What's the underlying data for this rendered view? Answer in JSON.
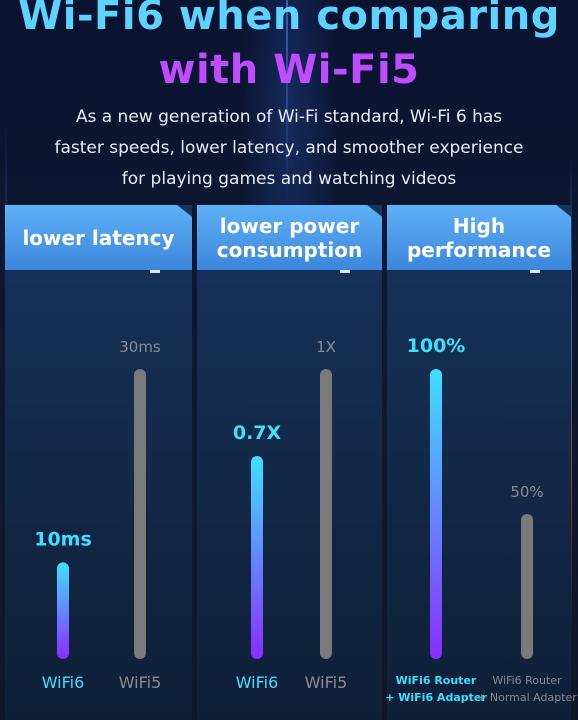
{
  "title": {
    "line1": "Wi-Fi6 when comparing",
    "line2": "with Wi-Fi5"
  },
  "subtitle": {
    "line1": "As a new generation of Wi-Fi standard, Wi-Fi 6 has",
    "line2": "faster speeds, lower latency, and smoother experience",
    "line3": "for playing games and watching videos"
  },
  "colors": {
    "title_top": "#5fd3ff",
    "title_bottom": "#c04cff",
    "header_bar": "#4a9de8",
    "wifi6_bar_top": "#3fe0ff",
    "wifi6_bar_bottom": "#8a2cff",
    "wifi6_label": "#3fe0ff",
    "wifi5_bar": "#7a7a7a",
    "wifi5_label": "#8c8c8c"
  },
  "chart_data": [
    {
      "type": "bar",
      "title": "lower latency",
      "categories": [
        "WiFi6",
        "WiFi5"
      ],
      "values": [
        10,
        30
      ],
      "data_labels": [
        "10ms",
        "30ms"
      ],
      "ylim": [
        0,
        30
      ]
    },
    {
      "type": "bar",
      "title": "lower power consumption",
      "categories": [
        "WiFi6",
        "WiFi5"
      ],
      "values": [
        0.7,
        1
      ],
      "data_labels": [
        "0.7X",
        "1X"
      ],
      "ylim": [
        0,
        1
      ]
    },
    {
      "type": "bar",
      "title": "High performance",
      "categories": [
        "WiFi6 Router\n+ WiFi6 Adapter",
        "WiFi6 Router\n+ Normal Adapter"
      ],
      "values": [
        100,
        50
      ],
      "data_labels": [
        "100%",
        "50%"
      ],
      "ylim": [
        0,
        100
      ]
    }
  ]
}
